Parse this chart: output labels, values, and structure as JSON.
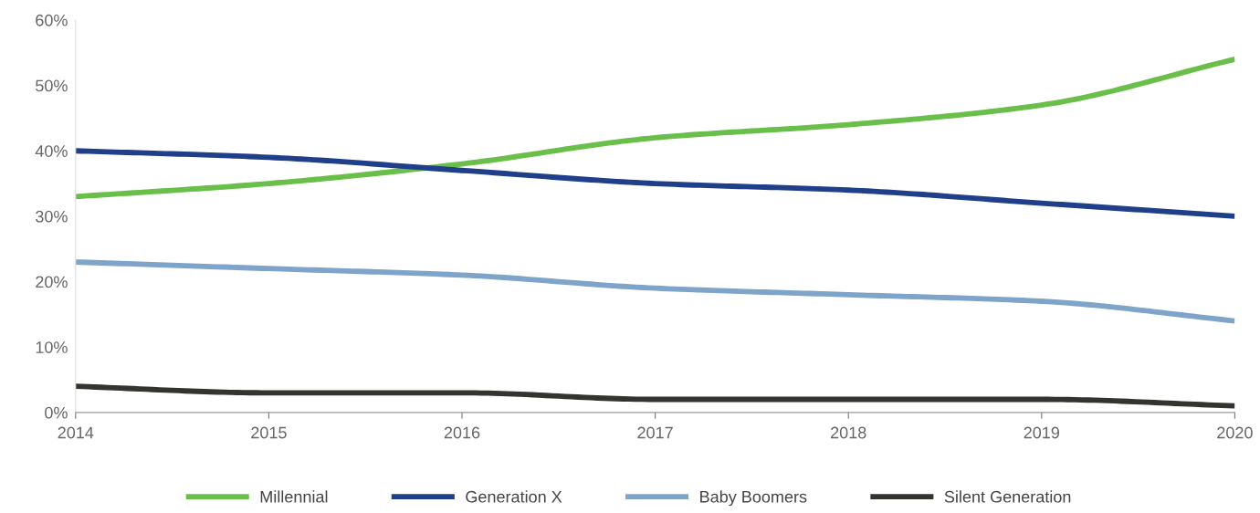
{
  "chart_data": {
    "type": "line",
    "x": [
      2014,
      2015,
      2016,
      2017,
      2018,
      2019,
      2020
    ],
    "series": [
      {
        "name": "Millennial",
        "color": "#6abf4b",
        "values": [
          33,
          35,
          38,
          42,
          44,
          47,
          54
        ]
      },
      {
        "name": "Generation X",
        "color": "#1f3f8a",
        "values": [
          40,
          39,
          37,
          35,
          34,
          32,
          30
        ]
      },
      {
        "name": "Baby Boomers",
        "color": "#7ea4c9",
        "values": [
          23,
          22,
          21,
          19,
          18,
          17,
          14
        ]
      },
      {
        "name": "Silent Generation",
        "color": "#333330",
        "values": [
          4,
          3,
          3,
          2,
          2,
          2,
          1
        ]
      }
    ],
    "xlim": [
      2014,
      2020
    ],
    "xticks": [
      2014,
      2015,
      2016,
      2017,
      2018,
      2019,
      2020
    ],
    "ylim": [
      0,
      60
    ],
    "yticks": [
      {
        "value": 0,
        "label": "0%"
      },
      {
        "value": 10,
        "label": "10%"
      },
      {
        "value": 20,
        "label": "20%"
      },
      {
        "value": 30,
        "label": "30%"
      },
      {
        "value": 40,
        "label": "40%"
      },
      {
        "value": 50,
        "label": "50%"
      },
      {
        "value": 60,
        "label": "60%"
      }
    ],
    "grid": false,
    "legend": "bottom",
    "marker": "none",
    "line_style": "solid"
  }
}
